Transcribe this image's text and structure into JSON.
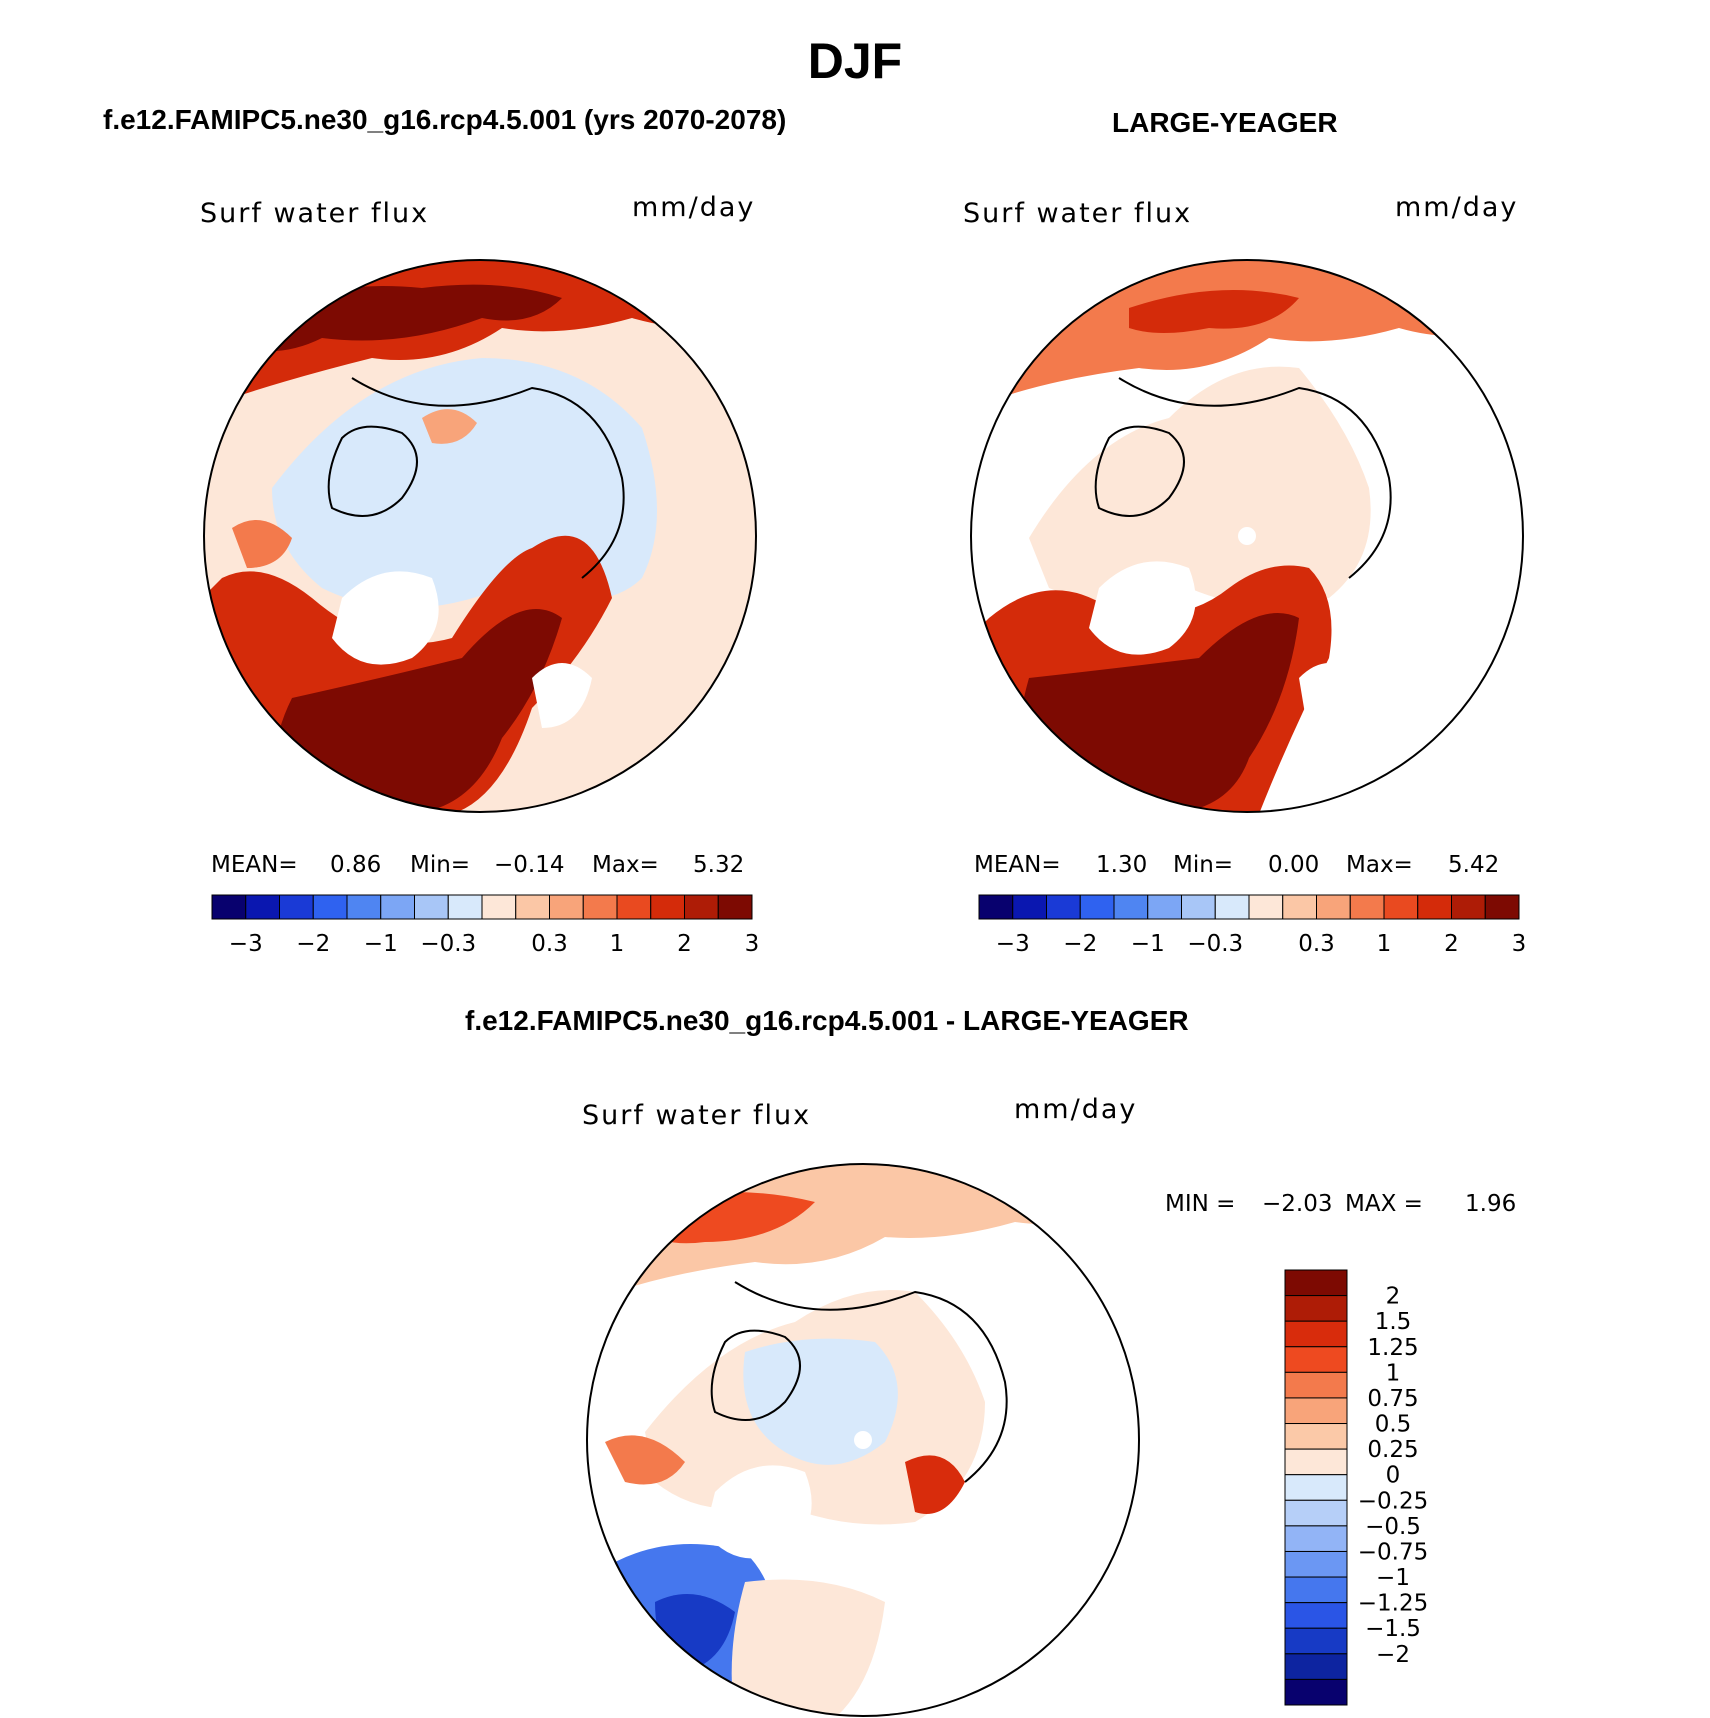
{
  "title": "DJF",
  "panels": [
    {
      "id": "model",
      "subtitle": "f.e12.FAMIPC5.ne30_g16.rcp4.5.001 (yrs 2070-2078)",
      "variable": "Surf water flux",
      "units": "mm/day",
      "stats": {
        "mean_label": "MEAN=",
        "mean": "0.86",
        "min_label": "Min=",
        "min": "−0.14",
        "max_label": "Max=",
        "max": "5.32"
      }
    },
    {
      "id": "obs",
      "subtitle": "LARGE-YEAGER",
      "variable": "Surf water flux",
      "units": "mm/day",
      "stats": {
        "mean_label": "MEAN=",
        "mean": "1.30",
        "min_label": "Min=",
        "min": "0.00",
        "max_label": "Max=",
        "max": "5.42"
      }
    },
    {
      "id": "diff",
      "subtitle": "f.e12.FAMIPC5.ne30_g16.rcp4.5.001 - LARGE-YEAGER",
      "variable": "Surf water flux",
      "units": "mm/day",
      "stats": {
        "min_label": "MIN =",
        "min": "−2.03",
        "max_label": "MAX =",
        "max": "1.96"
      }
    }
  ],
  "colorbar_main": {
    "colors": [
      "#08016e",
      "#0a17b0",
      "#1a3ad6",
      "#2f62f0",
      "#4f85f2",
      "#7ca6f5",
      "#a8c6f7",
      "#d8e9fb",
      "#fde7d8",
      "#fbc7a6",
      "#f8a47a",
      "#f37a4c",
      "#e94a20",
      "#d42b0a",
      "#ae1c06",
      "#7d0a02"
    ],
    "tick_labels": [
      "−3",
      "−2",
      "−1",
      "−0.3",
      "0.3",
      "1",
      "2",
      "3"
    ]
  },
  "colorbar_diff": {
    "colors": [
      "#7d0a02",
      "#ae1c06",
      "#d82c0c",
      "#ee4a20",
      "#f37a4c",
      "#f8a47a",
      "#fbc9a8",
      "#fde7d8",
      "#d8e9fb",
      "#b6cff8",
      "#92b4f6",
      "#6b97f3",
      "#4577ee",
      "#2a55e6",
      "#173ac5",
      "#0d24a0",
      "#08016e"
    ],
    "tick_labels": [
      "2",
      "1.5",
      "1.25",
      "1",
      "0.75",
      "0.5",
      "0.25",
      "0",
      "−0.25",
      "−0.5",
      "−0.75",
      "−1",
      "−1.25",
      "−1.5",
      "−2"
    ]
  },
  "map_colors": {
    "light_blue": "#d8e9fb",
    "peach": "#fde7d8",
    "lt_orange": "#fbc7a6",
    "orange": "#f37a4c",
    "red": "#d42b0a",
    "dark_red": "#ae1c06",
    "darkest": "#7d0a02",
    "blue": "#2f62f0",
    "dark_blue": "#1a3ad6"
  }
}
